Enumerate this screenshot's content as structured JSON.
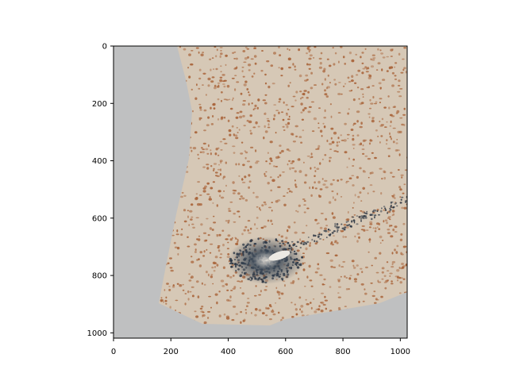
{
  "figure": {
    "background_color": "#bfc0c1",
    "tissue_color": "#d6c8b6",
    "nucleus_brown": "#a9643a",
    "nucleus_dark": "#2a3442",
    "x_ticks": [
      "0",
      "200",
      "400",
      "600",
      "800",
      "1000"
    ],
    "y_ticks": [
      "0",
      "200",
      "400",
      "600",
      "800",
      "1000"
    ]
  }
}
